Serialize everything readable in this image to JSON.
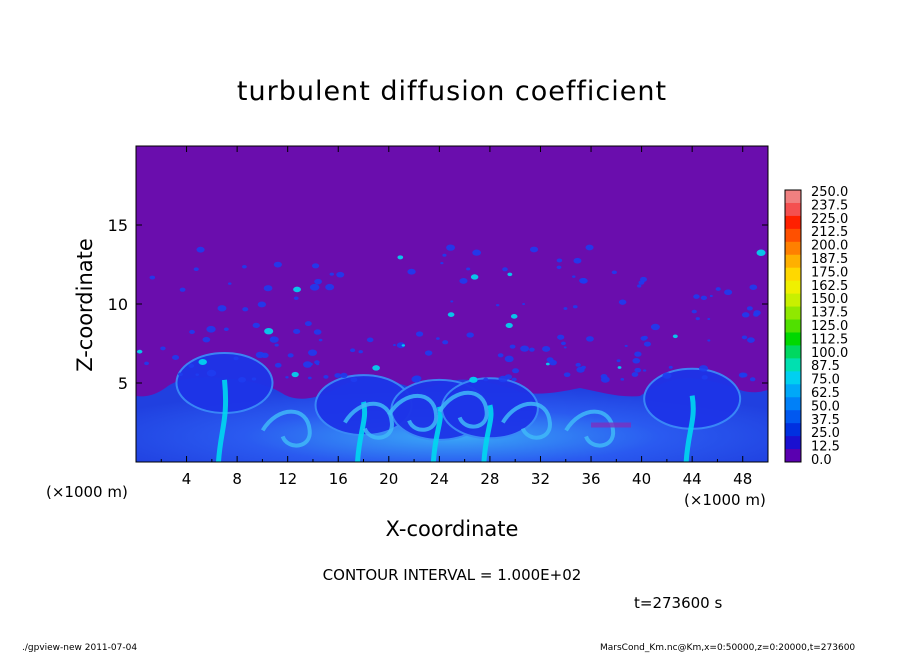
{
  "chart_data": {
    "type": "heatmap",
    "title": "turbulent diffusion coefficient",
    "xlabel": "X-coordinate",
    "ylabel": "Z-coordinate",
    "x_unit_label": "(×1000 m)",
    "y_unit_label": "(×1000 m)",
    "xlim": [
      0,
      50
    ],
    "ylim": [
      0,
      20
    ],
    "x_ticks": [
      4,
      8,
      12,
      16,
      20,
      24,
      28,
      32,
      36,
      40,
      44,
      48
    ],
    "y_ticks": [
      5,
      10,
      15
    ],
    "colorbar": {
      "labels": [
        "250.0",
        "237.5",
        "225.0",
        "212.5",
        "200.0",
        "187.5",
        "175.0",
        "162.5",
        "150.0",
        "137.5",
        "125.0",
        "112.5",
        "100.0",
        "87.5",
        "75.0",
        "62.5",
        "50.0",
        "37.5",
        "25.0",
        "12.5",
        "0.0"
      ],
      "colors": [
        "#f08080",
        "#f45050",
        "#ff2000",
        "#ff5000",
        "#ff8000",
        "#ffb000",
        "#ffd800",
        "#f0f000",
        "#c8f000",
        "#90e800",
        "#50e000",
        "#00d800",
        "#00d860",
        "#00e0b0",
        "#00d0f0",
        "#00a8f8",
        "#0080f8",
        "#0058f0",
        "#0030e0",
        "#1a10d0",
        "#5a00b0"
      ]
    },
    "background_color": "#6a0dad",
    "plume_color": "#1e3cf0",
    "core_color": "#00d8f0",
    "contour_interval": "CONTOUR INTERVAL = 1.000E+02",
    "time_label": "t=273600 s"
  },
  "footer": {
    "left": "./gpview-new  2011-07-04",
    "right": "MarsCond_Km.nc@Km,x=0:50000,z=0:20000,t=273600"
  }
}
